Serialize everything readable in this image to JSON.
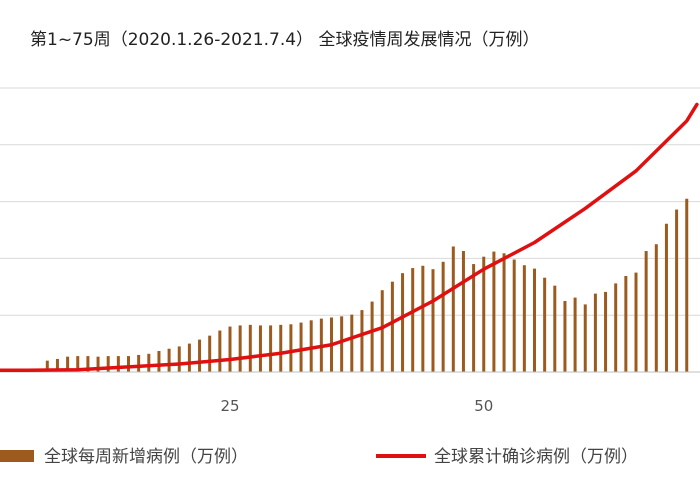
{
  "chart_data": {
    "type": "bar",
    "title": "第1~75周（2020.1.26-2021.7.4） 全球疫情周发展情况（万例）",
    "x_ticks": [
      25,
      50
    ],
    "grid": "horizontal",
    "legend_position": "bottom",
    "colors": {
      "weekly_bar": "#9c5a1e",
      "cumulative_line": "#e01010",
      "grid": "#d9d9d9",
      "axis": "#bfbfbf"
    },
    "series": [
      {
        "name": "全球每周新增病例（万例）",
        "kind": "bar",
        "x": [
          1,
          2,
          3,
          4,
          5,
          6,
          7,
          8,
          9,
          10,
          11,
          12,
          13,
          14,
          15,
          16,
          17,
          18,
          19,
          20,
          21,
          22,
          23,
          24,
          25,
          26,
          27,
          28,
          29,
          30,
          31,
          32,
          33,
          34,
          35,
          36,
          37,
          38,
          39,
          40,
          41,
          42,
          43,
          44,
          45,
          46,
          47,
          48,
          49,
          50,
          51,
          52,
          53,
          54,
          55,
          56,
          57,
          58,
          59,
          60,
          61,
          62,
          63,
          64,
          65,
          66,
          67,
          68,
          69,
          70
        ],
        "values": [
          0.2,
          0.2,
          0.2,
          0.2,
          0.2,
          0.2,
          2,
          2.3,
          2.7,
          2.8,
          2.8,
          2.7,
          2.8,
          2.8,
          2.8,
          3,
          3.2,
          3.7,
          4.1,
          4.5,
          5,
          5.7,
          6.4,
          7.3,
          8,
          8.2,
          8.3,
          8.2,
          8.2,
          8.3,
          8.4,
          8.7,
          9.1,
          9.4,
          9.6,
          9.8,
          10.1,
          10.9,
          12.4,
          14.4,
          15.9,
          17.4,
          18.3,
          18.7,
          18.1,
          19.4,
          22.1,
          21.3,
          19,
          20.3,
          21.2,
          20.9,
          19.8,
          18.8,
          18.2,
          16.6,
          15.2,
          12.5,
          13.1,
          11.9,
          13.8,
          14.1,
          15.6,
          16.9,
          17.5,
          21.3,
          22.5,
          26.1,
          28.6,
          30.5
        ]
      },
      {
        "name": "全球累计确诊病例（万例）",
        "kind": "line",
        "x": [
          1,
          5,
          10,
          15,
          20,
          25,
          30,
          35,
          40,
          45,
          50,
          55,
          60,
          65,
          70,
          71
        ],
        "values": [
          0.3,
          0.3,
          0.4,
          0.9,
          1.4,
          2.2,
          3.3,
          4.8,
          7.8,
          12.5,
          18.1,
          22.8,
          28.8,
          35.4,
          44.2,
          47.1
        ]
      }
    ]
  }
}
